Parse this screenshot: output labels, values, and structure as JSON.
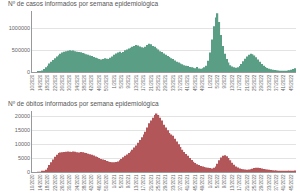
{
  "chart_data": [
    {
      "type": "bar",
      "title": "Nº de casos informados por semana epidemiológica",
      "categories": [
        "10/2020",
        null,
        null,
        null,
        "14/2020",
        null,
        null,
        null,
        "18/2020",
        null,
        null,
        null,
        "22/2020",
        null,
        null,
        null,
        "26/2020",
        null,
        null,
        null,
        "30/2020",
        null,
        null,
        null,
        "34/2020",
        null,
        null,
        null,
        "38/2020",
        null,
        null,
        null,
        "42/2020",
        null,
        null,
        null,
        "46/2020",
        null,
        null,
        null,
        "50/2020",
        null,
        null,
        null,
        "1/2021",
        null,
        null,
        null,
        "5/2021",
        null,
        null,
        null,
        "9/2021",
        null,
        null,
        null,
        "13/2021",
        null,
        null,
        null,
        "17/2021",
        null,
        null,
        null,
        "21/2021",
        null,
        null,
        null,
        "25/2021",
        null,
        null,
        null,
        "29/2021",
        null,
        null,
        null,
        "33/2021",
        null,
        null,
        null,
        "37/2021",
        null,
        null,
        null,
        "41/2021",
        null,
        null,
        null,
        "45/2021",
        null,
        null,
        null,
        "49/2021",
        null,
        null,
        null,
        "1/2022",
        null,
        null,
        null,
        "5/2022",
        null,
        null,
        null,
        "9/2022",
        null,
        null,
        null,
        "13/2022",
        null,
        null,
        null,
        "17/2022",
        null,
        null,
        null,
        "21/2022",
        null,
        null,
        null,
        "25/2022",
        null,
        null,
        null,
        "29/2022",
        null,
        null,
        null,
        "33/2022",
        null,
        null,
        null,
        "37/2022",
        null,
        null,
        null,
        "41/2022",
        null,
        null,
        null,
        "45/2022",
        null,
        null
      ],
      "values": [
        0,
        1000,
        3000,
        8000,
        20000,
        40000,
        70000,
        110000,
        150000,
        200000,
        240000,
        280000,
        320000,
        360000,
        390000,
        420000,
        450000,
        470000,
        480000,
        490000,
        500000,
        490000,
        495000,
        480000,
        470000,
        460000,
        455000,
        440000,
        430000,
        410000,
        400000,
        380000,
        370000,
        350000,
        330000,
        320000,
        300000,
        290000,
        300000,
        320000,
        310000,
        300000,
        330000,
        360000,
        400000,
        430000,
        450000,
        470000,
        440000,
        460000,
        500000,
        520000,
        540000,
        560000,
        580000,
        600000,
        620000,
        610000,
        590000,
        570000,
        560000,
        580000,
        620000,
        650000,
        640000,
        600000,
        580000,
        550000,
        520000,
        480000,
        460000,
        430000,
        400000,
        370000,
        350000,
        320000,
        300000,
        270000,
        240000,
        220000,
        200000,
        180000,
        160000,
        150000,
        140000,
        120000,
        110000,
        100000,
        90000,
        120000,
        85000,
        80000,
        90000,
        110000,
        150000,
        260000,
        450000,
        750000,
        1050000,
        1250000,
        1350000,
        1150000,
        850000,
        600000,
        420000,
        300000,
        220000,
        160000,
        130000,
        110000,
        100000,
        110000,
        140000,
        190000,
        250000,
        310000,
        360000,
        400000,
        420000,
        410000,
        380000,
        340000,
        290000,
        240000,
        190000,
        150000,
        120000,
        95000,
        80000,
        65000,
        55000,
        48000,
        42000,
        38000,
        35000,
        32000,
        30000,
        32000,
        38000,
        45000,
        55000,
        70000,
        90000
      ],
      "color": "#5a9e86",
      "ylim": [
        0,
        1400000
      ],
      "yticks": [
        0,
        500000,
        1000000
      ],
      "grid": true
    },
    {
      "type": "bar",
      "title": "Nº de óbitos informados por semana epidemiológica",
      "categories": [
        "10/2020",
        null,
        null,
        null,
        "14/2020",
        null,
        null,
        null,
        "18/2020",
        null,
        null,
        null,
        "22/2020",
        null,
        null,
        null,
        "26/2020",
        null,
        null,
        null,
        "30/2020",
        null,
        null,
        null,
        "34/2020",
        null,
        null,
        null,
        "38/2020",
        null,
        null,
        null,
        "42/2020",
        null,
        null,
        null,
        "46/2020",
        null,
        null,
        null,
        "50/2020",
        null,
        null,
        null,
        "1/2021",
        null,
        null,
        null,
        "5/2021",
        null,
        null,
        null,
        "9/2021",
        null,
        null,
        null,
        "13/2021",
        null,
        null,
        null,
        "17/2021",
        null,
        null,
        null,
        "21/2021",
        null,
        null,
        null,
        "25/2021",
        null,
        null,
        null,
        "29/2021",
        null,
        null,
        null,
        "33/2021",
        null,
        null,
        null,
        "37/2021",
        null,
        null,
        null,
        "41/2021",
        null,
        null,
        null,
        "45/2021",
        null,
        null,
        null,
        "49/2021",
        null,
        null,
        null,
        "1/2022",
        null,
        null,
        null,
        "5/2022",
        null,
        null,
        null,
        "9/2022",
        null,
        null,
        null,
        "13/2022",
        null,
        null,
        null,
        "17/2022",
        null,
        null,
        null,
        "21/2022",
        null,
        null,
        null,
        "25/2022",
        null,
        null,
        null,
        "29/2022",
        null,
        null,
        null,
        "33/2022",
        null,
        null,
        null,
        "37/2022",
        null,
        null,
        null,
        "41/2022",
        null,
        null,
        null,
        "45/2022",
        null,
        null
      ],
      "values": [
        0,
        0,
        0,
        10,
        50,
        150,
        400,
        800,
        1500,
        2500,
        3500,
        4500,
        5500,
        6200,
        6800,
        7000,
        7100,
        7200,
        7300,
        7400,
        7300,
        7200,
        7400,
        7300,
        7100,
        7000,
        7200,
        7100,
        6900,
        6800,
        6600,
        6400,
        6200,
        5900,
        5600,
        5400,
        5000,
        4700,
        4500,
        4300,
        4000,
        3800,
        3600,
        3500,
        3500,
        3600,
        3800,
        4200,
        4700,
        5300,
        5800,
        6300,
        6800,
        7400,
        8000,
        8800,
        9500,
        10500,
        11500,
        12500,
        13500,
        14500,
        16000,
        17500,
        18500,
        19500,
        20500,
        21000,
        20500,
        19500,
        18500,
        17000,
        16000,
        15000,
        14000,
        13500,
        13000,
        12000,
        11000,
        10000,
        9000,
        8000,
        7200,
        6500,
        5800,
        5000,
        4300,
        3700,
        3200,
        2800,
        2500,
        2200,
        2000,
        1800,
        1600,
        1500,
        1400,
        1300,
        1500,
        2000,
        3000,
        4200,
        5200,
        5800,
        6000,
        5700,
        5000,
        4200,
        3300,
        2600,
        2000,
        1600,
        1300,
        1100,
        1000,
        900,
        850,
        900,
        1000,
        1200,
        1400,
        1500,
        1500,
        1400,
        1300,
        1100,
        1000,
        900,
        800,
        700,
        600,
        550,
        500,
        450,
        420,
        400,
        380,
        370,
        360,
        380,
        420,
        480,
        550
      ],
      "color": "#b3565a",
      "ylim": [
        0,
        22000
      ],
      "yticks": [
        0,
        5000,
        10000,
        15000,
        20000
      ],
      "grid": true
    }
  ]
}
